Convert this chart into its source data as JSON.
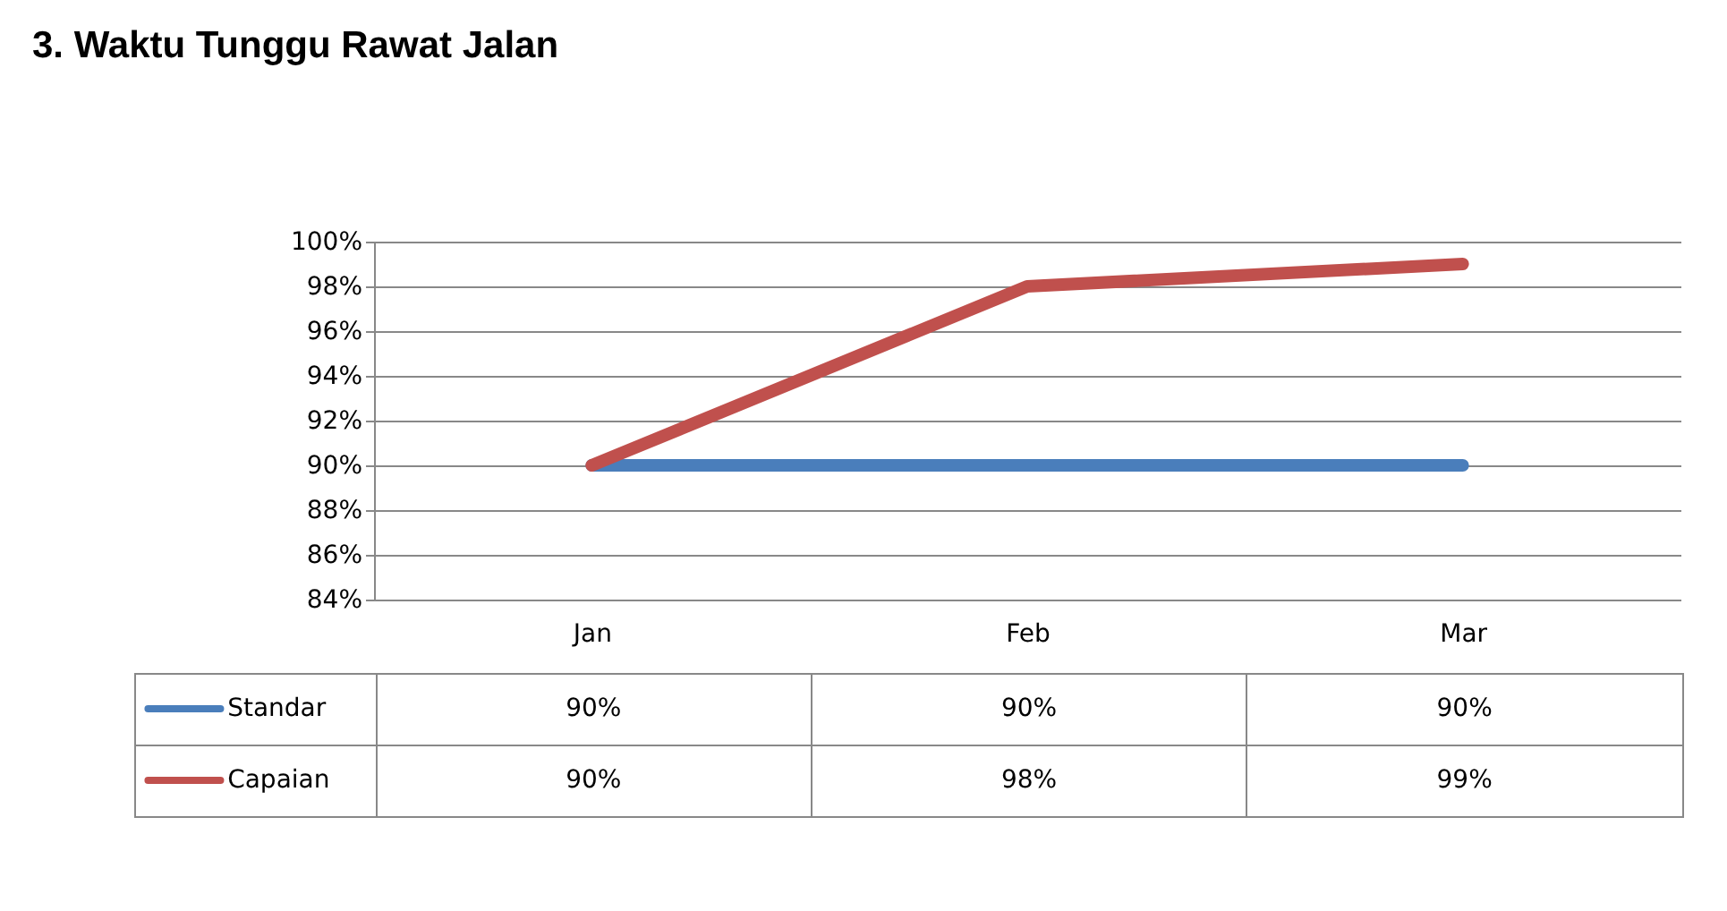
{
  "chart_data": {
    "type": "line",
    "title": "3. Waktu Tunggu Rawat Jalan",
    "categories": [
      "Jan",
      "Feb",
      "Mar"
    ],
    "series": [
      {
        "name": "Standar",
        "color": "#4a7ebb",
        "values": [
          90,
          90,
          90
        ],
        "value_labels": [
          "90%",
          "90%",
          "90%"
        ]
      },
      {
        "name": "Capaian",
        "color": "#c0504d",
        "values": [
          90,
          98,
          99
        ],
        "value_labels": [
          "90%",
          "98%",
          "99%"
        ]
      }
    ],
    "ylim": [
      84,
      100
    ],
    "yticks": [
      {
        "value": 84,
        "label": "84%"
      },
      {
        "value": 86,
        "label": "86%"
      },
      {
        "value": 88,
        "label": "88%"
      },
      {
        "value": 90,
        "label": "90%"
      },
      {
        "value": 92,
        "label": "92%"
      },
      {
        "value": 94,
        "label": "94%"
      },
      {
        "value": 96,
        "label": "96%"
      },
      {
        "value": 98,
        "label": "98%"
      },
      {
        "value": 100,
        "label": "100%"
      }
    ],
    "grid": "y",
    "legend": "bottom left",
    "marker": "none",
    "line_style": "solid"
  }
}
